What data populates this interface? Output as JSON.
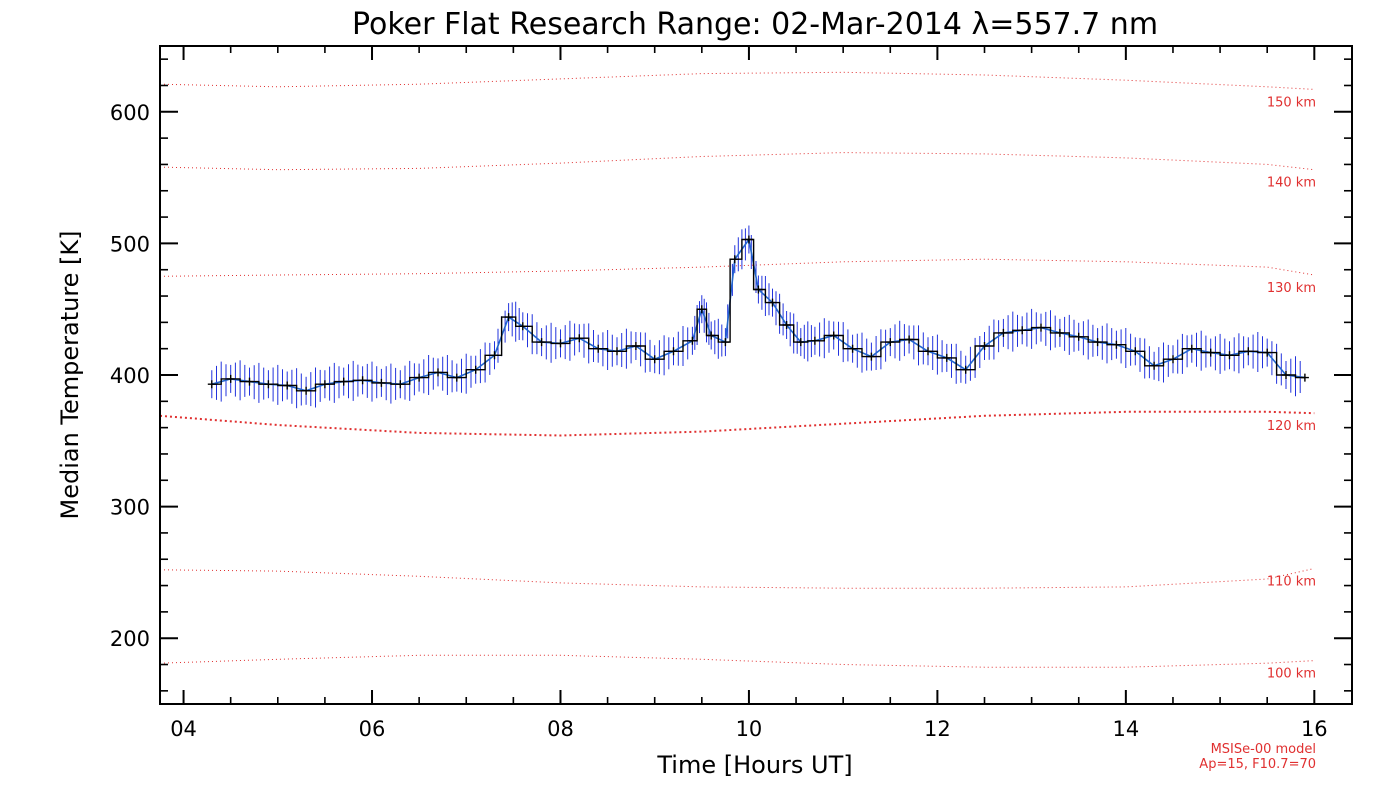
{
  "chart_data": {
    "type": "line",
    "title": "Poker Flat Research Range: 02-Mar-2014 λ=557.7 nm",
    "xlabel": "Time [Hours UT]",
    "ylabel": "Median Temperature [K]",
    "xlim": [
      3.75,
      16.4
    ],
    "ylim": [
      150,
      650
    ],
    "x_ticks": [
      {
        "value": 4,
        "label": "04"
      },
      {
        "value": 6,
        "label": "06"
      },
      {
        "value": 8,
        "label": "08"
      },
      {
        "value": 10,
        "label": "10"
      },
      {
        "value": 12,
        "label": "12"
      },
      {
        "value": 14,
        "label": "14"
      },
      {
        "value": 16,
        "label": "16"
      }
    ],
    "y_ticks": [
      {
        "value": 200,
        "label": "200"
      },
      {
        "value": 300,
        "label": "300"
      },
      {
        "value": 400,
        "label": "400"
      },
      {
        "value": 500,
        "label": "500"
      },
      {
        "value": 600,
        "label": "600"
      }
    ],
    "series": [
      {
        "color": "#000000",
        "marker": "plus",
        "error_bar_color": "#2233dd",
        "smooth_line_color": "#2266cc",
        "x": [
          4.3,
          4.5,
          4.7,
          4.9,
          5.1,
          5.3,
          5.5,
          5.7,
          5.9,
          6.1,
          6.3,
          6.5,
          6.7,
          6.9,
          7.1,
          7.3,
          7.45,
          7.6,
          7.8,
          8.0,
          8.2,
          8.4,
          8.6,
          8.8,
          9.0,
          9.2,
          9.4,
          9.5,
          9.6,
          9.75,
          9.85,
          10.0,
          10.1,
          10.25,
          10.4,
          10.55,
          10.7,
          10.9,
          11.1,
          11.3,
          11.5,
          11.7,
          11.9,
          12.1,
          12.3,
          12.5,
          12.7,
          12.9,
          13.1,
          13.3,
          13.5,
          13.7,
          13.9,
          14.1,
          14.3,
          14.5,
          14.7,
          14.9,
          15.1,
          15.3,
          15.5,
          15.7,
          15.9
        ],
        "y": [
          393,
          397,
          395,
          393,
          392,
          388,
          393,
          395,
          396,
          394,
          393,
          398,
          402,
          398,
          404,
          415,
          444,
          437,
          425,
          424,
          428,
          420,
          418,
          422,
          412,
          418,
          426,
          450,
          430,
          425,
          488,
          503,
          465,
          455,
          438,
          425,
          426,
          430,
          420,
          414,
          425,
          427,
          418,
          413,
          404,
          422,
          432,
          434,
          436,
          432,
          429,
          425,
          423,
          418,
          407,
          412,
          420,
          417,
          415,
          418,
          417,
          400,
          398
        ]
      }
    ],
    "reference_lines": [
      {
        "label": "100 km",
        "color": "#e03030",
        "x": [
          3.75,
          5,
          6.5,
          8,
          9.5,
          11,
          12.5,
          14,
          15.5,
          16.0
        ],
        "y": [
          181,
          184,
          187,
          187,
          184,
          180,
          178,
          178,
          181,
          183
        ]
      },
      {
        "label": "110 km",
        "color": "#e03030",
        "x": [
          3.75,
          5,
          6.5,
          8,
          9.5,
          11,
          12.5,
          14,
          15.5,
          16.0
        ],
        "y": [
          252,
          251,
          247,
          242,
          239,
          238,
          238,
          239,
          245,
          253
        ]
      },
      {
        "label": "120 km",
        "color": "#e03030",
        "x": [
          3.75,
          5,
          6.5,
          8,
          9.5,
          11,
          12.5,
          14,
          15.5,
          16.0
        ],
        "y": [
          369,
          362,
          356,
          354,
          357,
          363,
          369,
          372,
          372,
          371
        ]
      },
      {
        "label": "130 km",
        "color": "#e03030",
        "x": [
          3.75,
          5,
          6.5,
          8,
          9.5,
          11,
          12.5,
          14,
          15.5,
          16.0
        ],
        "y": [
          475,
          476,
          477,
          479,
          482,
          486,
          488,
          486,
          482,
          476
        ]
      },
      {
        "label": "140 km",
        "color": "#e03030",
        "x": [
          3.75,
          5,
          6.5,
          8,
          9.5,
          11,
          12.5,
          14,
          15.5,
          16.0
        ],
        "y": [
          558,
          556,
          557,
          561,
          566,
          569,
          568,
          565,
          560,
          556
        ]
      },
      {
        "label": "150 km",
        "color": "#e03030",
        "x": [
          3.75,
          5,
          6.5,
          8,
          9.5,
          11,
          12.5,
          14,
          15.5,
          16.0
        ],
        "y": [
          621,
          619,
          621,
          625,
          629,
          630,
          628,
          624,
          619,
          617
        ]
      }
    ],
    "annotations": [
      "MSISe-00 model",
      "Ap=15, F10.7=70"
    ],
    "grid": false,
    "legend": "none"
  }
}
